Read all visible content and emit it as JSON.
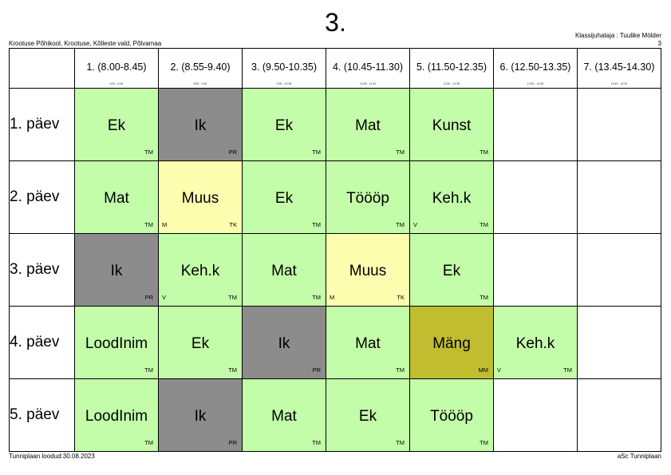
{
  "header": {
    "title": "3.",
    "school": "Krootuse Põhikool, Krootuse, Kõlleste vald, Põlvamaa",
    "teacher": "Klassijuhataja : Tuulike Mölder",
    "page_number": "3"
  },
  "footer": {
    "created": "Tunniplaan loodud:30.08.2023",
    "software": "aSc Tunniplaan"
  },
  "colors": {
    "green": "#c3fdaa",
    "gray": "#8c8c8c",
    "yellow": "#fefeb0",
    "olive": "#c0bd30",
    "empty": "#ffffff"
  },
  "periods": [
    {
      "label": "1. (8.00-8.45)",
      "time": "8:00 - 8:45"
    },
    {
      "label": "2. (8.55-9.40)",
      "time": "8:55 - 9:40"
    },
    {
      "label": "3. (9.50-10.35)",
      "time": "9:50 - 10:35"
    },
    {
      "label": "4. (10.45-11.30)",
      "time": "10:45 - 11:30"
    },
    {
      "label": "5. (11.50-12.35)",
      "time": "11:50 - 12:35"
    },
    {
      "label": "6. (12.50-13.35)",
      "time": "12:50 - 13:35"
    },
    {
      "label": "7. (13.45-14.30)",
      "time": "13:45 - 14:30"
    }
  ],
  "days": [
    {
      "label": "1. päev",
      "lessons": [
        {
          "subject": "Ek",
          "teacher": "TM",
          "group": "",
          "color": "green"
        },
        {
          "subject": "Ik",
          "teacher": "PR",
          "group": "",
          "color": "gray"
        },
        {
          "subject": "Ek",
          "teacher": "TM",
          "group": "",
          "color": "green"
        },
        {
          "subject": "Mat",
          "teacher": "TM",
          "group": "",
          "color": "green"
        },
        {
          "subject": "Kunst",
          "teacher": "TM",
          "group": "",
          "color": "green"
        },
        {
          "subject": "",
          "teacher": "",
          "group": "",
          "color": "empty"
        },
        {
          "subject": "",
          "teacher": "",
          "group": "",
          "color": "empty"
        }
      ]
    },
    {
      "label": "2. päev",
      "lessons": [
        {
          "subject": "Mat",
          "teacher": "TM",
          "group": "",
          "color": "green"
        },
        {
          "subject": "Muus",
          "teacher": "TK",
          "group": "M",
          "color": "yellow"
        },
        {
          "subject": "Ek",
          "teacher": "TM",
          "group": "",
          "color": "green"
        },
        {
          "subject": "Töööp",
          "teacher": "TM",
          "group": "",
          "color": "green"
        },
        {
          "subject": "Keh.k",
          "teacher": "TM",
          "group": "V",
          "color": "green"
        },
        {
          "subject": "",
          "teacher": "",
          "group": "",
          "color": "empty"
        },
        {
          "subject": "",
          "teacher": "",
          "group": "",
          "color": "empty"
        }
      ]
    },
    {
      "label": "3. päev",
      "lessons": [
        {
          "subject": "Ik",
          "teacher": "PR",
          "group": "",
          "color": "gray"
        },
        {
          "subject": "Keh.k",
          "teacher": "TM",
          "group": "V",
          "color": "green"
        },
        {
          "subject": "Mat",
          "teacher": "TM",
          "group": "",
          "color": "green"
        },
        {
          "subject": "Muus",
          "teacher": "TK",
          "group": "M",
          "color": "yellow"
        },
        {
          "subject": "Ek",
          "teacher": "TM",
          "group": "",
          "color": "green"
        },
        {
          "subject": "",
          "teacher": "",
          "group": "",
          "color": "empty"
        },
        {
          "subject": "",
          "teacher": "",
          "group": "",
          "color": "empty"
        }
      ]
    },
    {
      "label": "4. päev",
      "lessons": [
        {
          "subject": "LoodInim",
          "teacher": "TM",
          "group": "",
          "color": "green"
        },
        {
          "subject": "Ek",
          "teacher": "TM",
          "group": "",
          "color": "green"
        },
        {
          "subject": "Ik",
          "teacher": "PR",
          "group": "",
          "color": "gray"
        },
        {
          "subject": "Mat",
          "teacher": "TM",
          "group": "",
          "color": "green"
        },
        {
          "subject": "Mäng",
          "teacher": "MM",
          "group": "",
          "color": "olive"
        },
        {
          "subject": "Keh.k",
          "teacher": "TM",
          "group": "V",
          "color": "green"
        },
        {
          "subject": "",
          "teacher": "",
          "group": "",
          "color": "empty"
        }
      ]
    },
    {
      "label": "5. päev",
      "lessons": [
        {
          "subject": "LoodInim",
          "teacher": "TM",
          "group": "",
          "color": "green"
        },
        {
          "subject": "Ik",
          "teacher": "PR",
          "group": "",
          "color": "gray"
        },
        {
          "subject": "Mat",
          "teacher": "TM",
          "group": "",
          "color": "green"
        },
        {
          "subject": "Ek",
          "teacher": "TM",
          "group": "",
          "color": "green"
        },
        {
          "subject": "Töööp",
          "teacher": "TM",
          "group": "",
          "color": "green"
        },
        {
          "subject": "",
          "teacher": "",
          "group": "",
          "color": "empty"
        },
        {
          "subject": "",
          "teacher": "",
          "group": "",
          "color": "empty"
        }
      ]
    }
  ]
}
